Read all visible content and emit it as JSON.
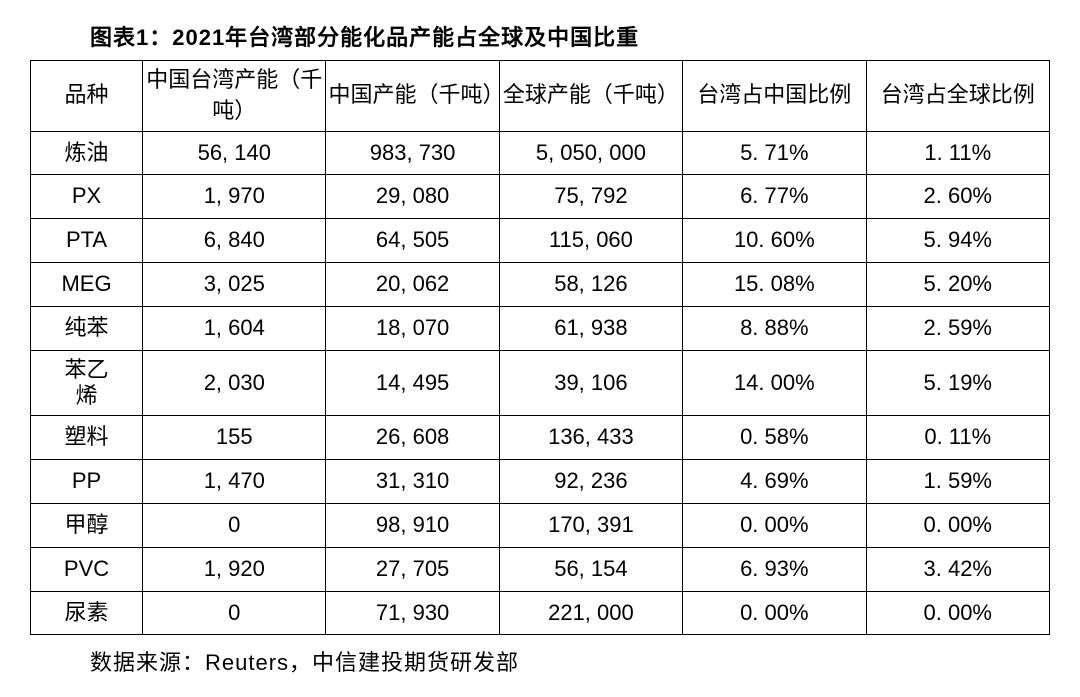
{
  "title": "图表1：2021年台湾部分能化品产能占全球及中国比重",
  "columns": {
    "product": "品种",
    "taiwan_capacity": "中国台湾产能（千吨）",
    "china_capacity": "中国产能（千吨）",
    "global_capacity": "全球产能（千吨）",
    "taiwan_china_ratio": "台湾占中国比例",
    "taiwan_global_ratio": "台湾占全球比例"
  },
  "rows": [
    {
      "product": "炼油",
      "tw": "56, 140",
      "cn": "983, 730",
      "global": "5, 050, 000",
      "ratio_cn": "5. 71%",
      "ratio_global": "1. 11%"
    },
    {
      "product": "PX",
      "tw": "1, 970",
      "cn": "29, 080",
      "global": "75, 792",
      "ratio_cn": "6. 77%",
      "ratio_global": "2. 60%"
    },
    {
      "product": "PTA",
      "tw": "6, 840",
      "cn": "64, 505",
      "global": "115, 060",
      "ratio_cn": "10. 60%",
      "ratio_global": "5. 94%"
    },
    {
      "product": "MEG",
      "tw": "3, 025",
      "cn": "20, 062",
      "global": "58, 126",
      "ratio_cn": "15. 08%",
      "ratio_global": "5. 20%"
    },
    {
      "product": "纯苯",
      "tw": "1, 604",
      "cn": "18, 070",
      "global": "61, 938",
      "ratio_cn": "8. 88%",
      "ratio_global": "2. 59%"
    },
    {
      "product": "苯乙烯",
      "tw": "2, 030",
      "cn": "14, 495",
      "global": "39, 106",
      "ratio_cn": "14. 00%",
      "ratio_global": "5. 19%"
    },
    {
      "product": "塑料",
      "tw": "155",
      "cn": "26, 608",
      "global": "136, 433",
      "ratio_cn": "0. 58%",
      "ratio_global": "0. 11%"
    },
    {
      "product": "PP",
      "tw": "1, 470",
      "cn": "31, 310",
      "global": "92, 236",
      "ratio_cn": "4. 69%",
      "ratio_global": "1. 59%"
    },
    {
      "product": "甲醇",
      "tw": "0",
      "cn": "98, 910",
      "global": "170, 391",
      "ratio_cn": "0. 00%",
      "ratio_global": "0. 00%"
    },
    {
      "product": "PVC",
      "tw": "1, 920",
      "cn": "27, 705",
      "global": "56, 154",
      "ratio_cn": "6. 93%",
      "ratio_global": "3. 42%"
    },
    {
      "product": "尿素",
      "tw": "0",
      "cn": "71, 930",
      "global": "221, 000",
      "ratio_cn": "0. 00%",
      "ratio_global": "0. 00%"
    }
  ],
  "source": "数据来源：Reuters，中信建投期货研发部",
  "style": {
    "background_color": "#ffffff",
    "text_color": "#000000",
    "border_color": "#000000",
    "title_fontsize": 22,
    "cell_fontsize": 22,
    "source_fontsize": 22,
    "font_family": "SimSun"
  }
}
